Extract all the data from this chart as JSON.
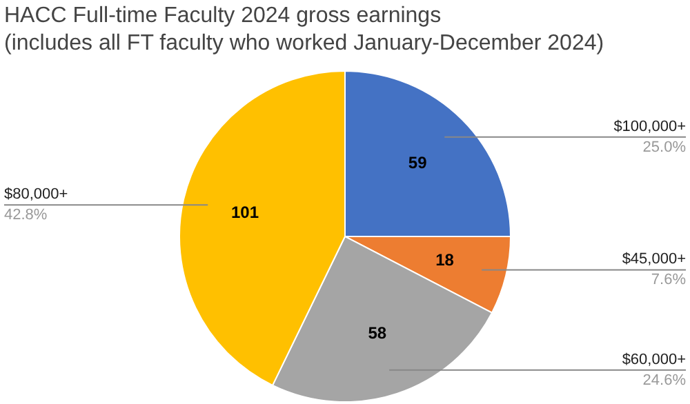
{
  "chart_data": {
    "type": "pie",
    "title": "HACC Full-time Faculty 2024 gross earnings\n(includes all FT faculty who worked January-December 2024)",
    "categories": [
      "$100,000+",
      "$45,000+",
      "$60,000+",
      "$80,000+"
    ],
    "values": [
      59,
      18,
      58,
      101
    ],
    "colors": [
      "#4472c4",
      "#ed7d31",
      "#a5a5a5",
      "#ffc000"
    ],
    "data_labels": true,
    "annotations": [
      "25.0%",
      "7.6%",
      "24.6%",
      "42.8%"
    ],
    "legend": false
  }
}
